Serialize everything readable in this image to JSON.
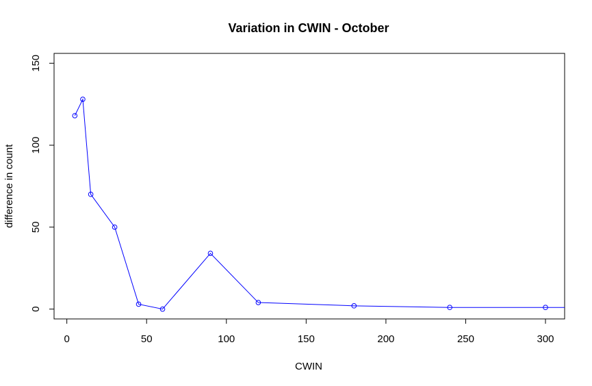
{
  "chart_data": {
    "type": "line",
    "title": "Variation in CWIN - October",
    "xlabel": "CWIN",
    "ylabel": "difference in count",
    "xlim": [
      -8,
      312
    ],
    "ylim": [
      -6,
      156
    ],
    "x_ticks": [
      0,
      50,
      100,
      150,
      200,
      250,
      300
    ],
    "y_ticks": [
      0,
      50,
      100,
      150
    ],
    "grid": false,
    "markers": "open-circle",
    "series": [
      {
        "color": "#0000ff",
        "x": [
          5,
          10,
          15,
          30,
          45,
          60,
          90,
          120,
          180,
          240,
          300
        ],
        "y": [
          118,
          128,
          70,
          50,
          3,
          0,
          34,
          4,
          2,
          1,
          1
        ],
        "extends_right_at_y": 1
      }
    ]
  }
}
